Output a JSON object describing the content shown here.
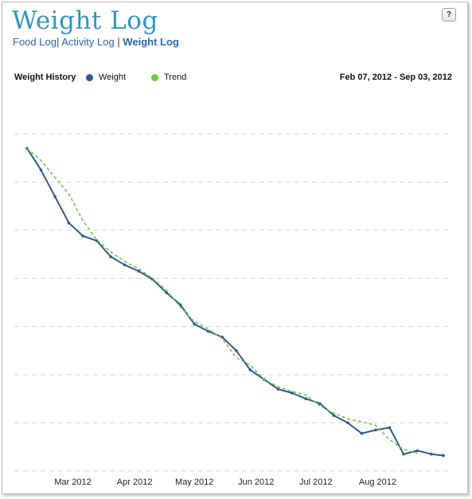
{
  "header": {
    "title": "Weight Log",
    "help_label": "?",
    "nav": [
      {
        "label": "Food Log",
        "active": false,
        "sep": "|"
      },
      {
        "label": "Activity Log",
        "active": false,
        "sep": "|"
      },
      {
        "label": "Weight Log",
        "active": true,
        "sep": ""
      }
    ]
  },
  "legend": {
    "title": "Weight History",
    "weight_label": "Weight",
    "trend_label": "Trend",
    "date_range": "Feb 07, 2012 - Sep 03, 2012"
  },
  "chart_data": {
    "type": "line",
    "title": "Weight History",
    "date_range": "Feb 07, 2012 - Sep 03, 2012",
    "x_ticks": [
      "Mar 2012",
      "Apr 2012",
      "May 2012",
      "Jun 2012",
      "Jul 2012",
      "Aug 2012"
    ],
    "xlim": [
      "2012-02-07",
      "2012-09-03"
    ],
    "grid": true,
    "y_tick_labels_shown": false,
    "colors": {
      "weight": "#2d5c8f",
      "trend": "#6bcf3c",
      "grid": "#d3d3d3"
    },
    "series": [
      {
        "name": "Weight",
        "style": "solid",
        "points": [
          [
            "2012-02-07",
            0.0
          ],
          [
            "2012-02-14",
            0.45
          ],
          [
            "2012-02-21",
            1.0
          ],
          [
            "2012-02-28",
            1.55
          ],
          [
            "2012-03-06",
            1.82
          ],
          [
            "2012-03-13",
            1.92
          ],
          [
            "2012-03-20",
            2.25
          ],
          [
            "2012-03-27",
            2.42
          ],
          [
            "2012-04-03",
            2.55
          ],
          [
            "2012-04-10",
            2.72
          ],
          [
            "2012-04-17",
            3.0
          ],
          [
            "2012-04-24",
            3.25
          ],
          [
            "2012-05-01",
            3.65
          ],
          [
            "2012-05-08",
            3.8
          ],
          [
            "2012-05-15",
            3.92
          ],
          [
            "2012-05-22",
            4.2
          ],
          [
            "2012-05-29",
            4.6
          ],
          [
            "2012-06-05",
            4.8
          ],
          [
            "2012-06-12",
            5.0
          ],
          [
            "2012-06-19",
            5.08
          ],
          [
            "2012-06-26",
            5.2
          ],
          [
            "2012-07-03",
            5.3
          ],
          [
            "2012-07-10",
            5.55
          ],
          [
            "2012-07-17",
            5.7
          ],
          [
            "2012-07-24",
            5.92
          ],
          [
            "2012-07-31",
            5.85
          ],
          [
            "2012-08-07",
            5.8
          ],
          [
            "2012-08-14",
            6.35
          ],
          [
            "2012-08-21",
            6.28
          ],
          [
            "2012-08-28",
            6.35
          ],
          [
            "2012-09-03",
            6.38
          ]
        ]
      },
      {
        "name": "Trend",
        "style": "dashed",
        "points": [
          [
            "2012-02-07",
            0.0
          ],
          [
            "2012-02-14",
            0.25
          ],
          [
            "2012-02-21",
            0.6
          ],
          [
            "2012-02-28",
            0.95
          ],
          [
            "2012-03-06",
            1.5
          ],
          [
            "2012-03-13",
            1.9
          ],
          [
            "2012-03-20",
            2.15
          ],
          [
            "2012-03-27",
            2.35
          ],
          [
            "2012-04-03",
            2.5
          ],
          [
            "2012-04-10",
            2.7
          ],
          [
            "2012-04-17",
            2.95
          ],
          [
            "2012-04-24",
            3.3
          ],
          [
            "2012-05-01",
            3.6
          ],
          [
            "2012-05-08",
            3.75
          ],
          [
            "2012-05-15",
            3.95
          ],
          [
            "2012-05-22",
            4.35
          ],
          [
            "2012-05-29",
            4.5
          ],
          [
            "2012-06-05",
            4.8
          ],
          [
            "2012-06-12",
            4.95
          ],
          [
            "2012-06-19",
            5.05
          ],
          [
            "2012-06-26",
            5.12
          ],
          [
            "2012-07-03",
            5.35
          ],
          [
            "2012-07-10",
            5.5
          ],
          [
            "2012-07-17",
            5.62
          ],
          [
            "2012-07-24",
            5.68
          ],
          [
            "2012-07-31",
            5.75
          ],
          [
            "2012-08-07",
            6.05
          ],
          [
            "2012-08-14",
            6.25
          ],
          [
            "2012-08-21",
            6.33
          ]
        ]
      }
    ],
    "y_note": "relative drop in gridline intervals from the first reading (no y-axis labels shown)",
    "ylim": [
      -0.3,
      7.35
    ]
  }
}
